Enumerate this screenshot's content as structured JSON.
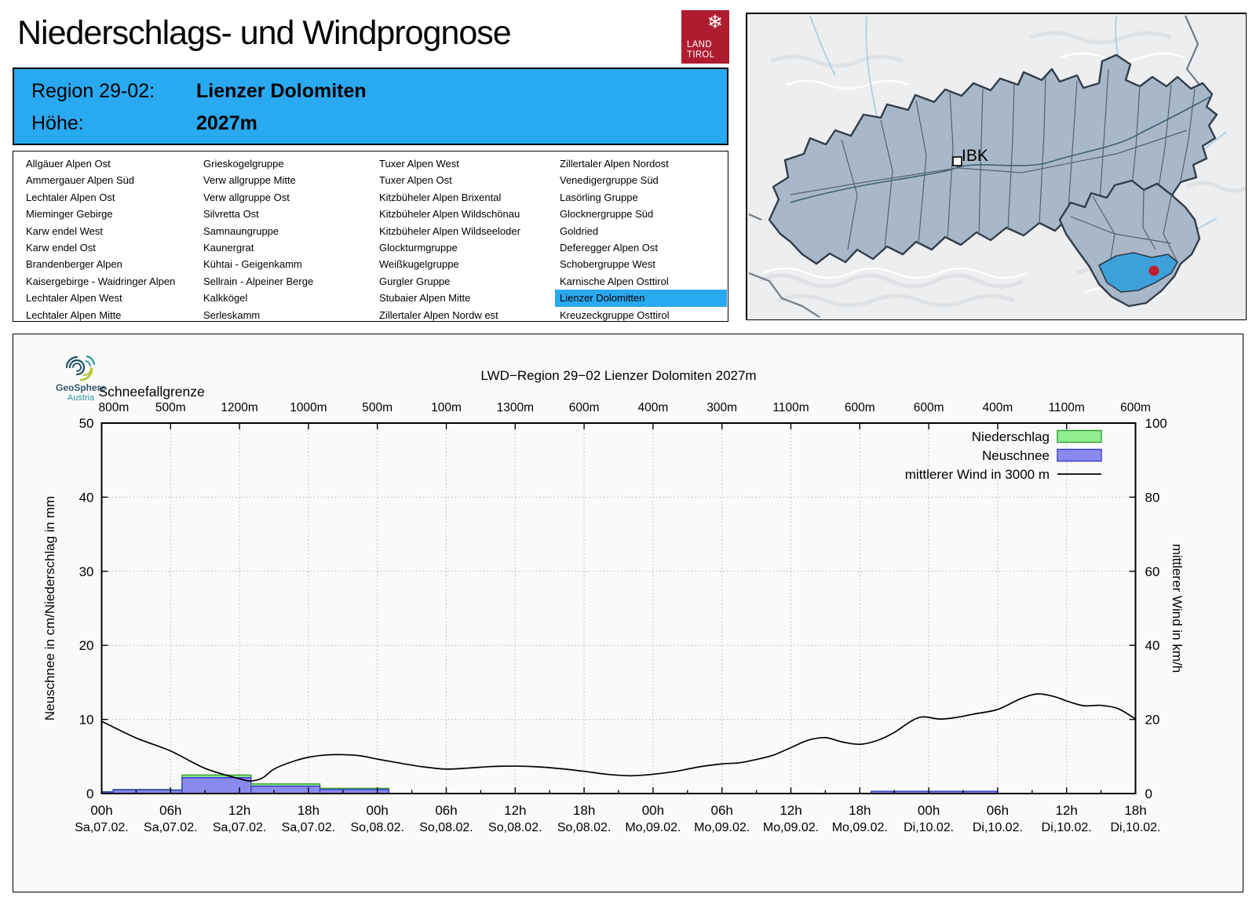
{
  "header": {
    "title": "Niederschlags- und Windprognose",
    "logo": {
      "snowflake_icon": "❄",
      "line1": "LAND",
      "line2": "TIROL"
    }
  },
  "region_box": {
    "region_label": "Region 29-02:",
    "region_value": "Lienzer Dolomiten",
    "hoehe_label": "Höhe:",
    "hoehe_value": "2027m"
  },
  "region_list": {
    "selected": [
      3,
      8
    ],
    "columns": [
      [
        "Allgäuer Alpen Ost",
        "Ammergauer Alpen Süd",
        "Lechtaler Alpen Ost",
        "Mieminger Gebirge",
        "Karw endel West",
        "Karw endel Ost",
        "Brandenberger Alpen",
        "Kaisergebirge - Waidringer Alpen",
        "Lechtaler Alpen West",
        "Lechtaler Alpen Mitte"
      ],
      [
        "Grieskogelgruppe",
        "Verw allgruppe Mitte",
        "Verw allgruppe Ost",
        "Silvretta Ost",
        "Samnaungruppe",
        "Kaunergrat",
        "Kühtai - Geigenkamm",
        "Sellrain - Alpeiner Berge",
        "Kalkkögel",
        "Serleskamm"
      ],
      [
        "Tuxer Alpen West",
        "Tuxer Alpen Ost",
        "Kitzbüheler Alpen Brixental",
        "Kitzbüheler Alpen Wildschönau",
        "Kitzbüheler Alpen Wildseeloder",
        "Glockturmgruppe",
        "Weißkugelgruppe",
        "Gurgler Gruppe",
        "Stubaier Alpen Mitte",
        "Zillertaler Alpen Nordw est"
      ],
      [
        "Zillertaler Alpen Nordost",
        "Venedigergruppe Süd",
        "Lasörling Gruppe",
        "Glocknergruppe Süd",
        "Goldried",
        "Deferegger Alpen Ost",
        "Schobergruppe West",
        "Karnische Alpen Osttirol",
        "Lienzer Dolomitten",
        "Kreuzeckgruppe Osttirol"
      ]
    ]
  },
  "map": {
    "marker_label": "IBK"
  },
  "chart": {
    "branding": {
      "name": "GeoSphere",
      "sub": "Austria"
    },
    "title": "LWD−Region 29−02 Lienzer Dolomiten 2027m",
    "snowline_label": "Schneefallgrenze",
    "left_axis": {
      "label": "Neuschnee in cm/Niederschlag in mm",
      "ticks": [
        0,
        10,
        20,
        30,
        40,
        50
      ]
    },
    "right_axis": {
      "label": "mittlerer Wind in km/h",
      "ticks": [
        0,
        20,
        40,
        60,
        80,
        100
      ]
    },
    "x_axis": {
      "times": [
        "00h",
        "06h",
        "12h",
        "18h",
        "00h",
        "06h",
        "12h",
        "18h",
        "00h",
        "06h",
        "12h",
        "18h",
        "00h",
        "06h",
        "12h",
        "18h"
      ],
      "dates": [
        "Sa,07.02.",
        "Sa,07.02.",
        "Sa,07.02.",
        "Sa,07.02.",
        "So,08.02.",
        "So,08.02.",
        "So,08.02.",
        "So,08.02.",
        "Mo,09.02.",
        "Mo,09.02.",
        "Mo,09.02.",
        "Mo,09.02.",
        "Di,10.02.",
        "Di,10.02.",
        "Di,10.02.",
        "Di,10.02."
      ]
    },
    "legend": [
      {
        "label": "Niederschlag",
        "swatch": "green-box"
      },
      {
        "label": "Neuschnee",
        "swatch": "blue-box"
      },
      {
        "label": "mittlerer Wind in 3000 m",
        "swatch": "line"
      }
    ],
    "colors": {
      "green_fill": "#90EE90",
      "green_stroke": "#2E9E2E",
      "blue_fill": "#8A8AEE",
      "blue_stroke": "#3A3AC8",
      "wind": "#000000",
      "grid": "#b5b5b5",
      "accent_blue": "#29A9F0",
      "brand_red": "#AE1C30"
    }
  },
  "chart_data": {
    "type": "mixed",
    "title": "LWD−Region 29−02 Lienzer Dolomiten 2027m",
    "x_unit": "hours since Sa 07.02. 00h",
    "x_range": [
      0,
      90
    ],
    "left_ylabel": "Neuschnee in cm/Niederschlag in mm",
    "right_ylabel": "mittlerer Wind in km/h",
    "left_ylim": [
      0,
      50
    ],
    "right_ylim": [
      0,
      100
    ],
    "grid": "dotted, vertical every 6h, horizontal every 10 units",
    "snowline_m": [
      800,
      500,
      1200,
      1000,
      500,
      100,
      1300,
      600,
      400,
      300,
      1100,
      600,
      600,
      400,
      1100,
      600
    ],
    "bars_format": "[start_h, end_h, niederschlag_mm, neuschnee_cm]",
    "bars": [
      [
        0,
        1,
        0.25,
        0.2
      ],
      [
        1,
        6,
        0.55,
        0.5
      ],
      [
        6,
        7,
        0.5,
        0.45
      ],
      [
        7,
        13,
        2.5,
        2.15
      ],
      [
        13,
        19,
        1.3,
        1.0
      ],
      [
        19,
        25,
        0.7,
        0.55
      ],
      [
        67,
        72,
        0.3,
        0.3
      ],
      [
        72,
        78,
        0.3,
        0.3
      ]
    ],
    "wind_kmh": [
      [
        0,
        19.5
      ],
      [
        3,
        15
      ],
      [
        6,
        11.5
      ],
      [
        9,
        6.8
      ],
      [
        12,
        4.0
      ],
      [
        13,
        3.4
      ],
      [
        14,
        4.2
      ],
      [
        15,
        6.6
      ],
      [
        16.5,
        8.5
      ],
      [
        18,
        9.8
      ],
      [
        19.5,
        10.4
      ],
      [
        21,
        10.5
      ],
      [
        22.5,
        10.2
      ],
      [
        24,
        9.3
      ],
      [
        26,
        8.2
      ],
      [
        28,
        7.2
      ],
      [
        30,
        6.6
      ],
      [
        32,
        6.9
      ],
      [
        34,
        7.3
      ],
      [
        36,
        7.4
      ],
      [
        38,
        7.2
      ],
      [
        40,
        6.7
      ],
      [
        42,
        6.0
      ],
      [
        44,
        5.2
      ],
      [
        46,
        4.8
      ],
      [
        48,
        5.2
      ],
      [
        50,
        6.0
      ],
      [
        52,
        7.2
      ],
      [
        54,
        8.0
      ],
      [
        55.5,
        8.3
      ],
      [
        57,
        9.2
      ],
      [
        58.5,
        10.4
      ],
      [
        60,
        12.4
      ],
      [
        61.5,
        14.4
      ],
      [
        63,
        15.1
      ],
      [
        64.5,
        13.9
      ],
      [
        66,
        13.3
      ],
      [
        67.5,
        14.3
      ],
      [
        69,
        16.5
      ],
      [
        70.5,
        19.6
      ],
      [
        71.5,
        20.7
      ],
      [
        73,
        20.1
      ],
      [
        74.5,
        20.6
      ],
      [
        76,
        21.5
      ],
      [
        78,
        22.7
      ],
      [
        80,
        25.6
      ],
      [
        81.5,
        26.9
      ],
      [
        83,
        26.1
      ],
      [
        84,
        25.0
      ],
      [
        85.5,
        23.7
      ],
      [
        87,
        23.8
      ],
      [
        88.5,
        22.9
      ],
      [
        90,
        20.1
      ]
    ]
  }
}
